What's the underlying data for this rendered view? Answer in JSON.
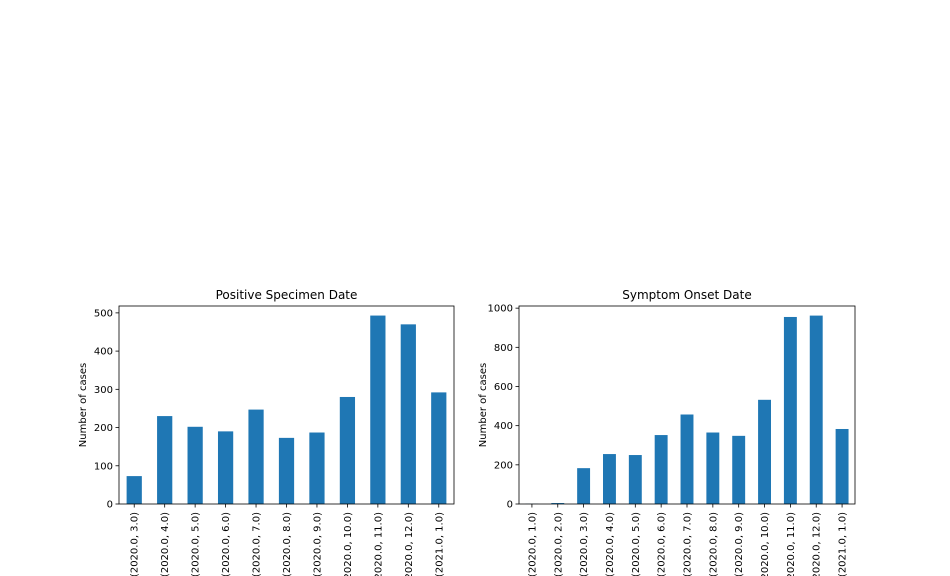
{
  "chart_data": [
    {
      "type": "bar",
      "title": "Positive Specimen Date",
      "xlabel": "",
      "ylabel": "Number of cases",
      "categories": [
        "(2020.0, 3.0)",
        "(2020.0, 4.0)",
        "(2020.0, 5.0)",
        "(2020.0, 6.0)",
        "(2020.0, 7.0)",
        "(2020.0, 8.0)",
        "(2020.0, 9.0)",
        "(2020.0, 10.0)",
        "(2020.0, 11.0)",
        "(2020.0, 12.0)",
        "(2021.0, 1.0)"
      ],
      "values": [
        73,
        230,
        202,
        190,
        247,
        173,
        187,
        280,
        493,
        470,
        292
      ],
      "ylim": [
        0,
        518
      ],
      "yticks": [
        0,
        100,
        200,
        300,
        400,
        500
      ],
      "bar_color": "#1f77b4",
      "grid": false,
      "legend": "none"
    },
    {
      "type": "bar",
      "title": "Symptom Onset Date",
      "xlabel": "",
      "ylabel": "Number of cases",
      "categories": [
        "(2020.0, 1.0)",
        "(2020.0, 2.0)",
        "(2020.0, 3.0)",
        "(2020.0, 4.0)",
        "(2020.0, 5.0)",
        "(2020.0, 6.0)",
        "(2020.0, 7.0)",
        "(2020.0, 8.0)",
        "(2020.0, 9.0)",
        "(2020.0, 10.0)",
        "(2020.0, 11.0)",
        "(2020.0, 12.0)",
        "(2021.0, 1.0)"
      ],
      "values": [
        1,
        5,
        183,
        255,
        250,
        352,
        457,
        365,
        348,
        532,
        955,
        962,
        383
      ],
      "ylim": [
        0,
        1011
      ],
      "yticks": [
        0,
        200,
        400,
        600,
        800,
        1000
      ],
      "bar_color": "#1f77b4",
      "grid": false,
      "legend": "none"
    }
  ]
}
